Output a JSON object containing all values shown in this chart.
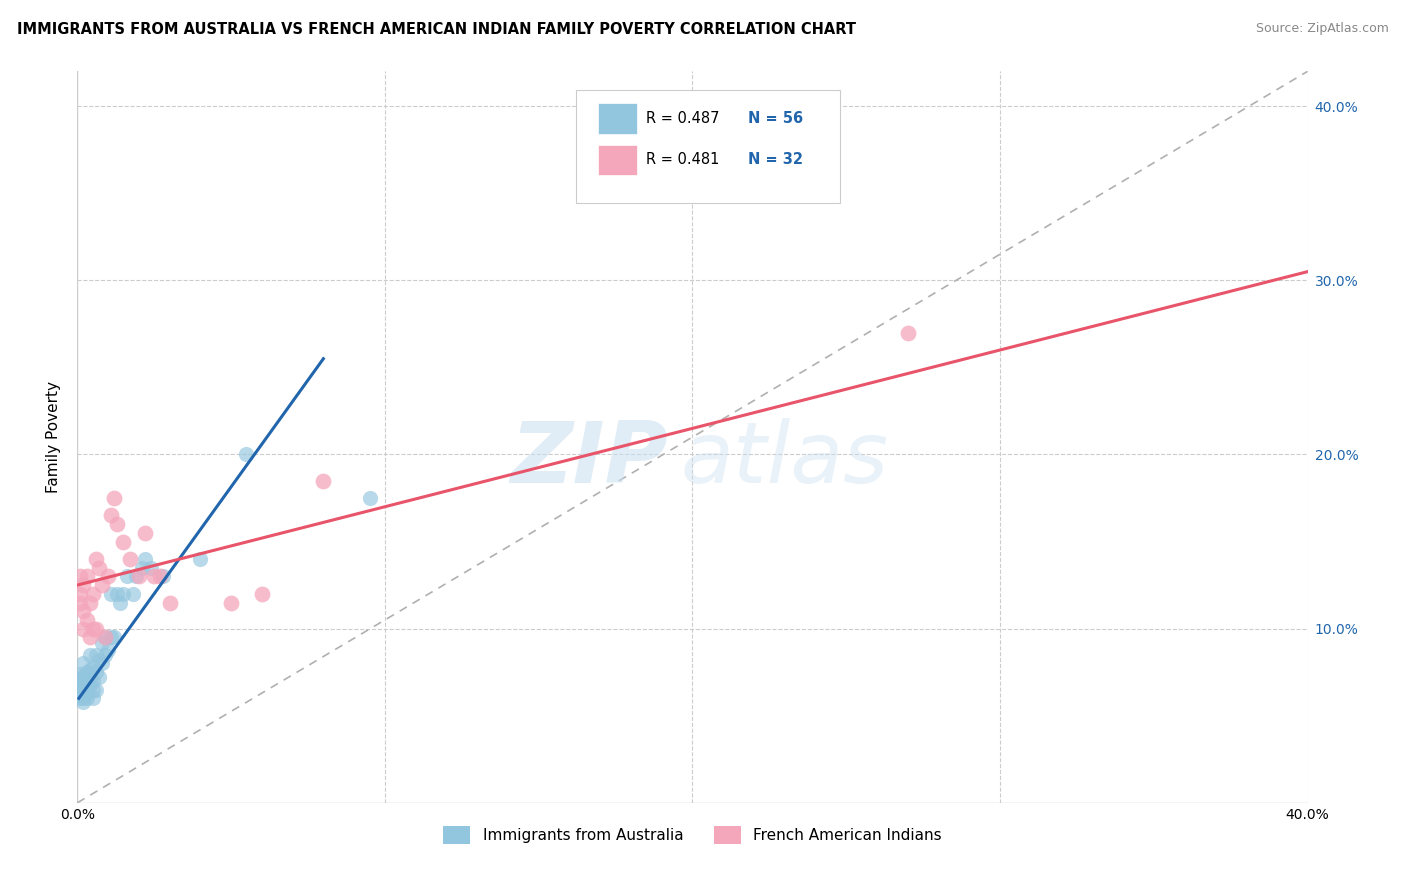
{
  "title": "IMMIGRANTS FROM AUSTRALIA VS FRENCH AMERICAN INDIAN FAMILY POVERTY CORRELATION CHART",
  "source": "Source: ZipAtlas.com",
  "ylabel": "Family Poverty",
  "legend_blue_r": "0.487",
  "legend_blue_n": "56",
  "legend_pink_r": "0.481",
  "legend_pink_n": "32",
  "legend_label_blue": "Immigrants from Australia",
  "legend_label_pink": "French American Indians",
  "blue_color": "#92c5de",
  "pink_color": "#f4a6bb",
  "blue_line_color": "#2166ac",
  "pink_line_color": "#e8546a",
  "diagonal_color": "#b0b0b0",
  "watermark_zip": "ZIP",
  "watermark_atlas": "atlas",
  "xmin": 0.0,
  "xmax": 0.4,
  "ymin": 0.0,
  "ymax": 0.42,
  "blue_scatter_x": [
    0.001,
    0.001,
    0.001,
    0.001,
    0.001,
    0.001,
    0.001,
    0.001,
    0.001,
    0.002,
    0.002,
    0.002,
    0.002,
    0.002,
    0.002,
    0.002,
    0.002,
    0.003,
    0.003,
    0.003,
    0.003,
    0.003,
    0.004,
    0.004,
    0.004,
    0.004,
    0.005,
    0.005,
    0.005,
    0.005,
    0.006,
    0.006,
    0.006,
    0.007,
    0.007,
    0.008,
    0.008,
    0.009,
    0.009,
    0.01,
    0.011,
    0.011,
    0.012,
    0.013,
    0.014,
    0.015,
    0.016,
    0.018,
    0.019,
    0.021,
    0.022,
    0.024,
    0.028,
    0.04,
    0.055,
    0.095
  ],
  "blue_scatter_y": [
    0.06,
    0.062,
    0.065,
    0.066,
    0.067,
    0.068,
    0.07,
    0.072,
    0.074,
    0.058,
    0.06,
    0.063,
    0.065,
    0.068,
    0.07,
    0.072,
    0.08,
    0.06,
    0.063,
    0.067,
    0.07,
    0.075,
    0.068,
    0.072,
    0.076,
    0.085,
    0.06,
    0.065,
    0.07,
    0.078,
    0.065,
    0.075,
    0.085,
    0.072,
    0.082,
    0.08,
    0.092,
    0.085,
    0.095,
    0.088,
    0.095,
    0.12,
    0.095,
    0.12,
    0.115,
    0.12,
    0.13,
    0.12,
    0.13,
    0.135,
    0.14,
    0.135,
    0.13,
    0.14,
    0.2,
    0.175
  ],
  "pink_scatter_x": [
    0.001,
    0.001,
    0.001,
    0.002,
    0.002,
    0.002,
    0.003,
    0.003,
    0.004,
    0.004,
    0.005,
    0.005,
    0.006,
    0.006,
    0.007,
    0.008,
    0.009,
    0.01,
    0.011,
    0.012,
    0.013,
    0.015,
    0.017,
    0.02,
    0.022,
    0.025,
    0.027,
    0.03,
    0.05,
    0.06,
    0.08,
    0.27
  ],
  "pink_scatter_y": [
    0.115,
    0.12,
    0.13,
    0.1,
    0.11,
    0.125,
    0.105,
    0.13,
    0.095,
    0.115,
    0.1,
    0.12,
    0.1,
    0.14,
    0.135,
    0.125,
    0.095,
    0.13,
    0.165,
    0.175,
    0.16,
    0.15,
    0.14,
    0.13,
    0.155,
    0.13,
    0.13,
    0.115,
    0.115,
    0.12,
    0.185,
    0.27
  ],
  "blue_line_x": [
    0.0005,
    0.08
  ],
  "blue_line_y": [
    0.06,
    0.255
  ],
  "pink_line_x": [
    0.0,
    0.4
  ],
  "pink_line_y": [
    0.125,
    0.305
  ]
}
